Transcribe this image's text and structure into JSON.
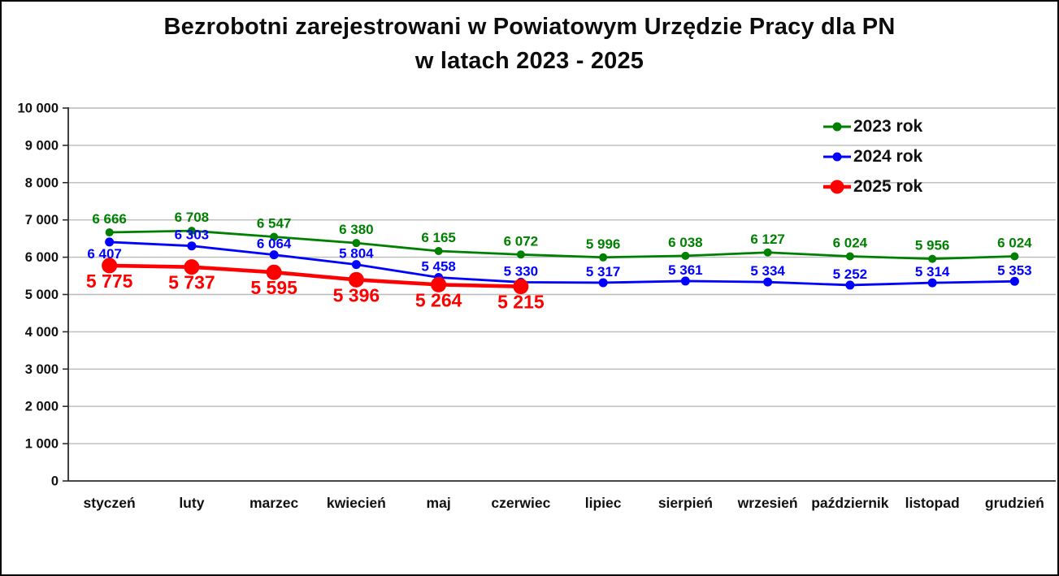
{
  "title": {
    "line1": "Bezrobotni zarejestrowani w Powiatowym Urzędzie Pracy dla PN",
    "line2": "w latach 2023 - 2025"
  },
  "chart_data": {
    "type": "line",
    "title": "Bezrobotni zarejestrowani w Powiatowym Urzędzie Pracy dla PN w latach 2023 - 2025",
    "xlabel": "",
    "ylabel": "",
    "categories": [
      "styczeń",
      "luty",
      "marzec",
      "kwiecień",
      "maj",
      "czerwiec",
      "lipiec",
      "sierpień",
      "wrzesień",
      "październik",
      "listopad",
      "grudzień"
    ],
    "series": [
      {
        "name": "2023 rok",
        "color": "#008000",
        "values": [
          6666,
          6708,
          6547,
          6380,
          6165,
          6072,
          5996,
          6038,
          6127,
          6024,
          5956,
          6024
        ]
      },
      {
        "name": "2024 rok",
        "color": "#0000FF",
        "values": [
          6407,
          6303,
          6064,
          5804,
          5458,
          5330,
          5317,
          5361,
          5334,
          5252,
          5314,
          5353
        ]
      },
      {
        "name": "2025 rok",
        "color": "#FF0000",
        "values": [
          5775,
          5737,
          5595,
          5396,
          5264,
          5215,
          null,
          null,
          null,
          null,
          null,
          null
        ]
      }
    ],
    "ylim": [
      0,
      10000
    ],
    "ytick_step": 1000,
    "y_tick_labels": [
      "0",
      "1 000",
      "2 000",
      "3 000",
      "4 000",
      "5 000",
      "6 000",
      "7 000",
      "8 000",
      "9 000",
      "10 000"
    ],
    "grid": "horizontal",
    "legend_position": "top-right",
    "data_labels": "shown",
    "number_format": "space-thousands"
  },
  "colors": {
    "background": "#FFFFFF",
    "frame_border": "#000000",
    "gridline": "#BABABA",
    "axis_line": "#2B2B2B",
    "tick_label": "#111111",
    "title_text": "#0D0D0D"
  }
}
